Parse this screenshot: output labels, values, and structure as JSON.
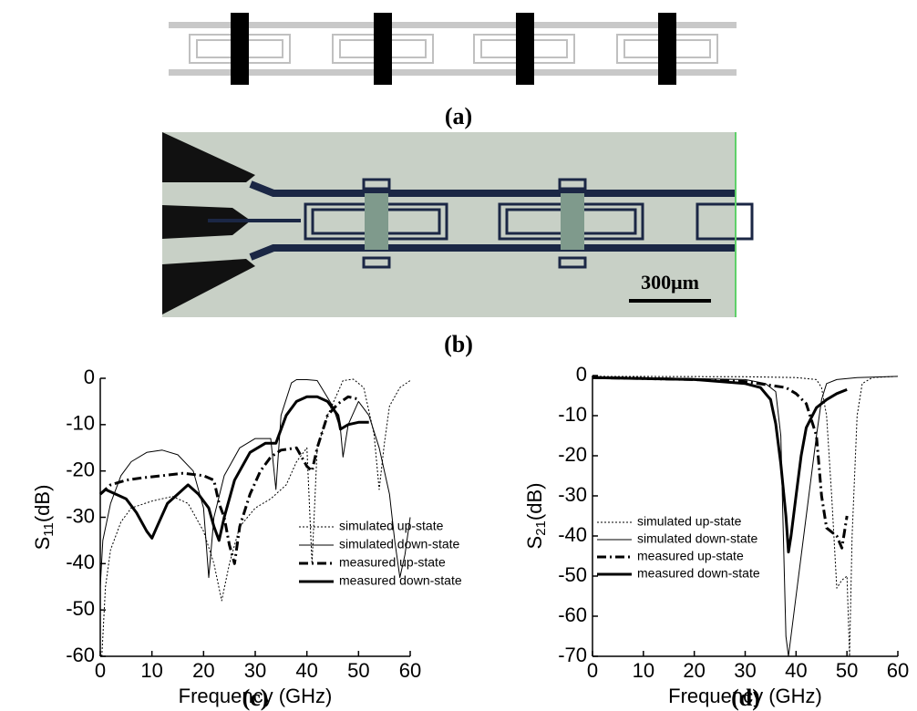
{
  "figure": {
    "panel_labels": [
      "(a)",
      "(b)",
      "(c)",
      "(d)"
    ],
    "scale_bar": "300μm"
  },
  "chart_data": [
    {
      "type": "line",
      "x_label": "Frequency (GHz)",
      "y_label": {
        "symbol": "S",
        "subscript": "11",
        "unit": "(dB)"
      },
      "xlim": [
        0,
        60
      ],
      "xticks": [
        0,
        10,
        20,
        30,
        40,
        50,
        60
      ],
      "ylim": [
        -60,
        0
      ],
      "yticks": [
        0,
        -10,
        -20,
        -30,
        -40,
        -50,
        -60
      ],
      "legend": "lower right",
      "series": [
        {
          "name": "simulated up-state",
          "color": "#000000",
          "linestyle": "dotted",
          "linewidth": 1,
          "x": [
            0.3,
            1,
            2,
            4,
            6,
            10,
            14,
            17,
            20,
            22,
            23.5,
            25,
            27,
            30,
            33,
            36,
            38,
            40,
            41,
            42,
            44,
            46,
            47,
            49,
            51,
            53,
            54,
            55,
            56,
            58,
            60
          ],
          "values": [
            -60,
            -45,
            -37,
            -31,
            -28,
            -26.5,
            -25.5,
            -27,
            -33,
            -40,
            -48,
            -40,
            -32,
            -28,
            -26,
            -23,
            -18,
            -15,
            -40,
            -15,
            -8,
            -3,
            -0.5,
            -0.2,
            -2,
            -12,
            -24,
            -14,
            -6,
            -2,
            -0.5
          ]
        },
        {
          "name": "simulated down-state",
          "color": "#000000",
          "linestyle": "solid",
          "linewidth": 1,
          "x": [
            0,
            0.5,
            2,
            4,
            6,
            9,
            12,
            15,
            18,
            20,
            21,
            22,
            24,
            27,
            30,
            33,
            34,
            35,
            37,
            38,
            40,
            42,
            45,
            46.5,
            47,
            48,
            50,
            52,
            54,
            56,
            57,
            58,
            59,
            60
          ],
          "values": [
            -45,
            -35,
            -27,
            -21,
            -18,
            -16,
            -15.5,
            -16.5,
            -20,
            -28,
            -43,
            -30,
            -21,
            -15,
            -13,
            -13,
            -24,
            -8,
            -1,
            -0.3,
            -0.3,
            -0.5,
            -6,
            -11,
            -17,
            -10,
            -5,
            -8,
            -15,
            -25,
            -35,
            -43,
            -38,
            -30
          ]
        },
        {
          "name": "measured up-state",
          "color": "#000000",
          "linestyle": "dashdot",
          "linewidth": 3,
          "x": [
            0,
            2,
            5,
            8,
            12,
            16,
            20,
            22,
            23,
            24,
            25,
            26,
            27,
            29,
            31,
            33,
            35,
            38,
            40,
            41,
            42,
            44,
            46,
            48,
            50
          ],
          "values": [
            -25,
            -23,
            -22,
            -21.5,
            -21,
            -20.5,
            -21,
            -22,
            -27,
            -30,
            -36,
            -40,
            -32,
            -25,
            -20,
            -17,
            -15.5,
            -15,
            -19,
            -20,
            -15,
            -8,
            -5.5,
            -4,
            -4.5
          ]
        },
        {
          "name": "measured down-state",
          "color": "#000000",
          "linestyle": "solid",
          "linewidth": 3,
          "x": [
            0,
            1,
            3,
            5,
            7,
            9,
            10,
            11,
            13,
            15,
            17,
            19,
            21,
            22,
            23,
            24,
            26,
            29,
            32,
            34,
            36,
            38,
            40,
            42,
            44,
            46,
            46.5,
            48,
            50,
            52
          ],
          "values": [
            -25,
            -24,
            -25,
            -26,
            -29,
            -33,
            -34.5,
            -32,
            -27,
            -25,
            -23,
            -25,
            -28,
            -32,
            -35,
            -30,
            -22,
            -16,
            -14,
            -14,
            -8,
            -5,
            -4,
            -4,
            -5,
            -8,
            -11,
            -10,
            -9.5,
            -9.5
          ]
        }
      ]
    },
    {
      "type": "line",
      "x_label": "Frequency (GHz)",
      "y_label": {
        "symbol": "S",
        "subscript": "21",
        "unit": "(dB)"
      },
      "xlim": [
        0,
        60
      ],
      "xticks": [
        0,
        10,
        20,
        30,
        40,
        50,
        60
      ],
      "ylim": [
        -70,
        0
      ],
      "yticks": [
        0,
        -10,
        -20,
        -30,
        -40,
        -50,
        -60,
        -70
      ],
      "legend": "lower left",
      "series": [
        {
          "name": "simulated up-state",
          "color": "#000000",
          "linestyle": "dotted",
          "linewidth": 1,
          "x": [
            0,
            30,
            40,
            44,
            45,
            46,
            47,
            48,
            49,
            50,
            50.5,
            51,
            52,
            53,
            55,
            60
          ],
          "values": [
            -0.2,
            -0.3,
            -0.5,
            -1,
            -3,
            -10,
            -30,
            -53,
            -51,
            -50,
            -70,
            -40,
            -10,
            -2,
            -0.5,
            -0.2
          ]
        },
        {
          "name": "simulated down-state",
          "color": "#000000",
          "linestyle": "solid",
          "linewidth": 1,
          "x": [
            0,
            30,
            34,
            36,
            37,
            37.5,
            38,
            38.5,
            40,
            42,
            44,
            45,
            46,
            48,
            52,
            60
          ],
          "values": [
            -0.3,
            -1,
            -2,
            -4,
            -15,
            -40,
            -65,
            -70,
            -55,
            -35,
            -15,
            -6,
            -2,
            -1,
            -0.5,
            -0.2
          ]
        },
        {
          "name": "measured up-state",
          "color": "#000000",
          "linestyle": "dashdot",
          "linewidth": 3,
          "x": [
            0,
            20,
            30,
            38,
            40,
            42,
            44,
            45,
            46,
            48,
            49,
            50
          ],
          "values": [
            -0.5,
            -1,
            -1.5,
            -3,
            -4.5,
            -7,
            -15,
            -30,
            -38,
            -40,
            -43,
            -35
          ]
        },
        {
          "name": "measured down-state",
          "color": "#000000",
          "linestyle": "solid",
          "linewidth": 3,
          "x": [
            0,
            20,
            30,
            33,
            35,
            36,
            37,
            38,
            38.5,
            39,
            40,
            41,
            42,
            44,
            46,
            48,
            50
          ],
          "values": [
            -0.5,
            -1,
            -2,
            -3,
            -6,
            -12,
            -22,
            -35,
            -44,
            -40,
            -30,
            -20,
            -13,
            -8,
            -6,
            -4.5,
            -3.5
          ]
        }
      ]
    }
  ]
}
